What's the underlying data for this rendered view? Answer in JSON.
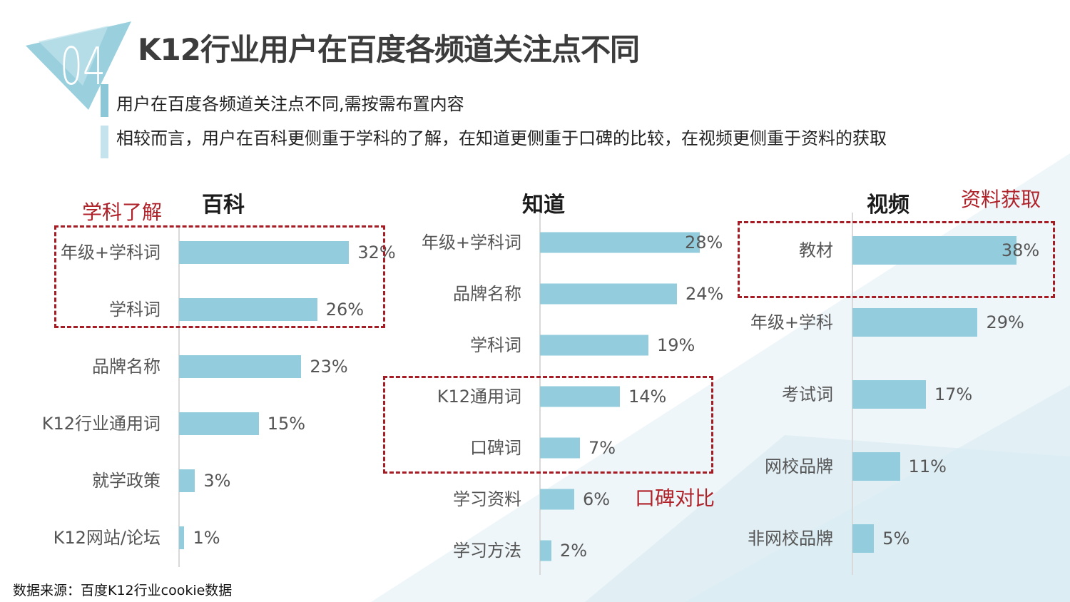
{
  "page": {
    "title": "K12行业用户在百度各频道关注点不同",
    "section_number": "04",
    "subtitle_1": "用户在百度各频道关注点不同,需按需布置内容",
    "subtitle_2": "相较而言，用户在百科更侧重于学科的了解，在知道更侧重于口碑的比较，在视频更侧重于资料的获取",
    "source": "数据来源：百度K12行业cookie数据",
    "colors": {
      "bar": "#93cddd",
      "highlight": "#a51c24",
      "accent": "#7fc3d6",
      "title": "#3c3c3c"
    }
  },
  "chart_data": [
    {
      "type": "bar",
      "orientation": "horizontal",
      "title": "百科",
      "categories": [
        "年级+学科词",
        "学科词",
        "品牌名称",
        "K12行业通用词",
        "就学政策",
        "K12网站/论坛"
      ],
      "values": [
        32,
        26,
        23,
        15,
        3,
        1
      ],
      "value_labels": [
        "32%",
        "26%",
        "23%",
        "15%",
        "3%",
        "1%"
      ],
      "unit": "%",
      "highlight": {
        "label": "学科了解",
        "categories": [
          "年级+学科词",
          "学科词"
        ]
      }
    },
    {
      "type": "bar",
      "orientation": "horizontal",
      "title": "知道",
      "categories": [
        "年级+学科词",
        "品牌名称",
        "学科词",
        "K12通用词",
        "口碑词",
        "学习资料",
        "学习方法"
      ],
      "values": [
        28,
        24,
        19,
        14,
        7,
        6,
        2
      ],
      "value_labels": [
        "28%",
        "24%",
        "19%",
        "14%",
        "7%",
        "6%",
        "2%"
      ],
      "unit": "%",
      "highlight": {
        "label": "口碑对比",
        "categories": [
          "K12通用词",
          "口碑词"
        ]
      }
    },
    {
      "type": "bar",
      "orientation": "horizontal",
      "title": "视频",
      "categories": [
        "教材",
        "年级+学科",
        "考试词",
        "网校品牌",
        "非网校品牌"
      ],
      "values": [
        38,
        29,
        17,
        11,
        5
      ],
      "value_labels": [
        "38%",
        "29%",
        "17%",
        "11%",
        "5%"
      ],
      "unit": "%",
      "highlight": {
        "label": "资料获取",
        "categories": [
          "教材"
        ]
      }
    }
  ]
}
